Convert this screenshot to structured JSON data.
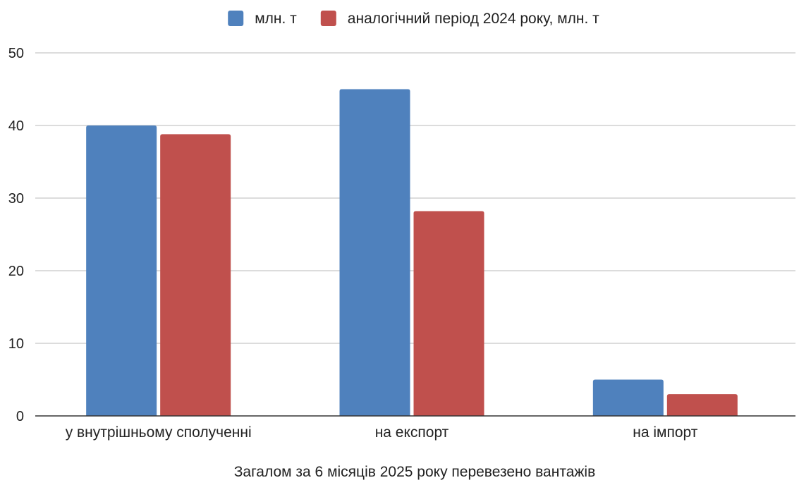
{
  "chart_data": {
    "type": "bar",
    "title": "",
    "xlabel": "Загалом за 6 місяців 2025 року перевезено вантажів",
    "ylabel": "",
    "categories": [
      "у внутрішньому сполученні",
      "на експорт",
      "на імпорт"
    ],
    "series": [
      {
        "name": "млн. т",
        "values": [
          40,
          45,
          5
        ],
        "color": "#4f81bd"
      },
      {
        "name": "аналогічний період 2024 року, млн. т",
        "values": [
          38.8,
          28.2,
          3
        ],
        "color": "#c0504d"
      }
    ],
    "ylim": [
      0,
      50
    ],
    "yticks": [
      0,
      10,
      20,
      30,
      40,
      50
    ],
    "grid": true,
    "legend_position": "top-center"
  }
}
